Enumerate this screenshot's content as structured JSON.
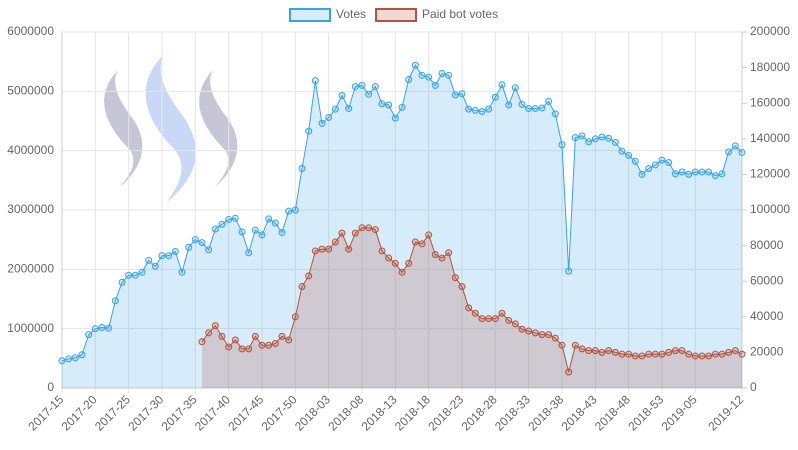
{
  "chart_data": {
    "type": "line",
    "categories": [
      "2017-15",
      null,
      null,
      null,
      null,
      "2017-20",
      null,
      null,
      null,
      null,
      "2017-25",
      null,
      null,
      null,
      null,
      "2017-30",
      null,
      null,
      null,
      null,
      "2017-35",
      null,
      null,
      null,
      null,
      "2017-40",
      null,
      null,
      null,
      null,
      "2017-45",
      null,
      null,
      null,
      null,
      "2017-50",
      null,
      null,
      null,
      null,
      "2018-03",
      null,
      null,
      null,
      null,
      "2018-08",
      null,
      null,
      null,
      null,
      "2018-13",
      null,
      null,
      null,
      null,
      "2018-18",
      null,
      null,
      null,
      null,
      "2018-23",
      null,
      null,
      null,
      null,
      "2018-28",
      null,
      null,
      null,
      null,
      "2018-33",
      null,
      null,
      null,
      null,
      "2018-38",
      null,
      null,
      null,
      null,
      "2018-43",
      null,
      null,
      null,
      null,
      "2018-48",
      null,
      null,
      null,
      null,
      "2018-53",
      null,
      null,
      null,
      null,
      "2019-05",
      null,
      null,
      null,
      null,
      null,
      null,
      "2019-12"
    ],
    "series": [
      {
        "name": "Votes",
        "color": "#36a2eb",
        "fill": "rgba(54,162,235,0.2)",
        "values": [
          460000,
          490000,
          510000,
          560000,
          900000,
          1000000,
          1020000,
          1010000,
          1470000,
          1780000,
          1900000,
          1900000,
          1950000,
          2150000,
          2050000,
          2230000,
          2230000,
          2300000,
          1950000,
          2370000,
          2500000,
          2450000,
          2330000,
          2680000,
          2760000,
          2840000,
          2860000,
          2630000,
          2280000,
          2660000,
          2580000,
          2850000,
          2780000,
          2620000,
          2980000,
          3000000,
          3700000,
          4330000,
          5180000,
          4460000,
          4560000,
          4700000,
          4930000,
          4710000,
          5080000,
          5100000,
          4950000,
          5080000,
          4790000,
          4770000,
          4550000,
          4730000,
          5200000,
          5440000,
          5270000,
          5240000,
          5100000,
          5300000,
          5270000,
          4940000,
          4960000,
          4700000,
          4680000,
          4660000,
          4700000,
          4900000,
          5110000,
          4770000,
          5060000,
          4780000,
          4710000,
          4710000,
          4720000,
          4830000,
          4620000,
          4100000,
          1970000,
          4220000,
          4250000,
          4150000,
          4200000,
          4230000,
          4210000,
          4140000,
          3990000,
          3920000,
          3820000,
          3600000,
          3700000,
          3760000,
          3840000,
          3800000,
          3610000,
          3640000,
          3600000,
          3640000,
          3640000,
          3640000,
          3580000,
          3610000,
          3980000,
          4080000,
          3970000
        ]
      },
      {
        "name": "Paid bot votes",
        "color": "#b5523b",
        "fill": "rgba(181,82,59,0.22)",
        "axis": "y2",
        "values": [
          null,
          null,
          null,
          null,
          null,
          null,
          null,
          null,
          null,
          null,
          null,
          null,
          null,
          null,
          null,
          null,
          null,
          null,
          null,
          null,
          null,
          26000,
          31000,
          35000,
          29000,
          23000,
          27000,
          22000,
          22000,
          29000,
          24000,
          24000,
          25000,
          29000,
          27000,
          40000,
          57000,
          63000,
          77000,
          78000,
          78000,
          82000,
          87000,
          78000,
          87000,
          90000,
          90000,
          89000,
          77000,
          73000,
          70000,
          65000,
          70000,
          82000,
          81000,
          86000,
          75000,
          73000,
          76000,
          62000,
          57000,
          45000,
          42000,
          39000,
          39000,
          39000,
          42000,
          38000,
          36000,
          33000,
          32000,
          31000,
          30000,
          30000,
          28000,
          24000,
          9000,
          24000,
          22000,
          21000,
          21000,
          20000,
          21000,
          20000,
          19000,
          19000,
          18000,
          18000,
          19000,
          19000,
          19000,
          20000,
          21000,
          21000,
          19000,
          18000,
          18000,
          18000,
          19000,
          19000,
          20000,
          21000,
          19000
        ]
      }
    ],
    "ylim": [
      0,
      6000000
    ],
    "yticks": [
      0,
      1000000,
      2000000,
      3000000,
      4000000,
      5000000,
      6000000
    ],
    "y2lim": [
      0,
      200000
    ],
    "y2ticks": [
      0,
      20000,
      40000,
      60000,
      80000,
      100000,
      120000,
      140000,
      160000,
      180000,
      200000
    ],
    "grid": true,
    "legend": "top"
  }
}
